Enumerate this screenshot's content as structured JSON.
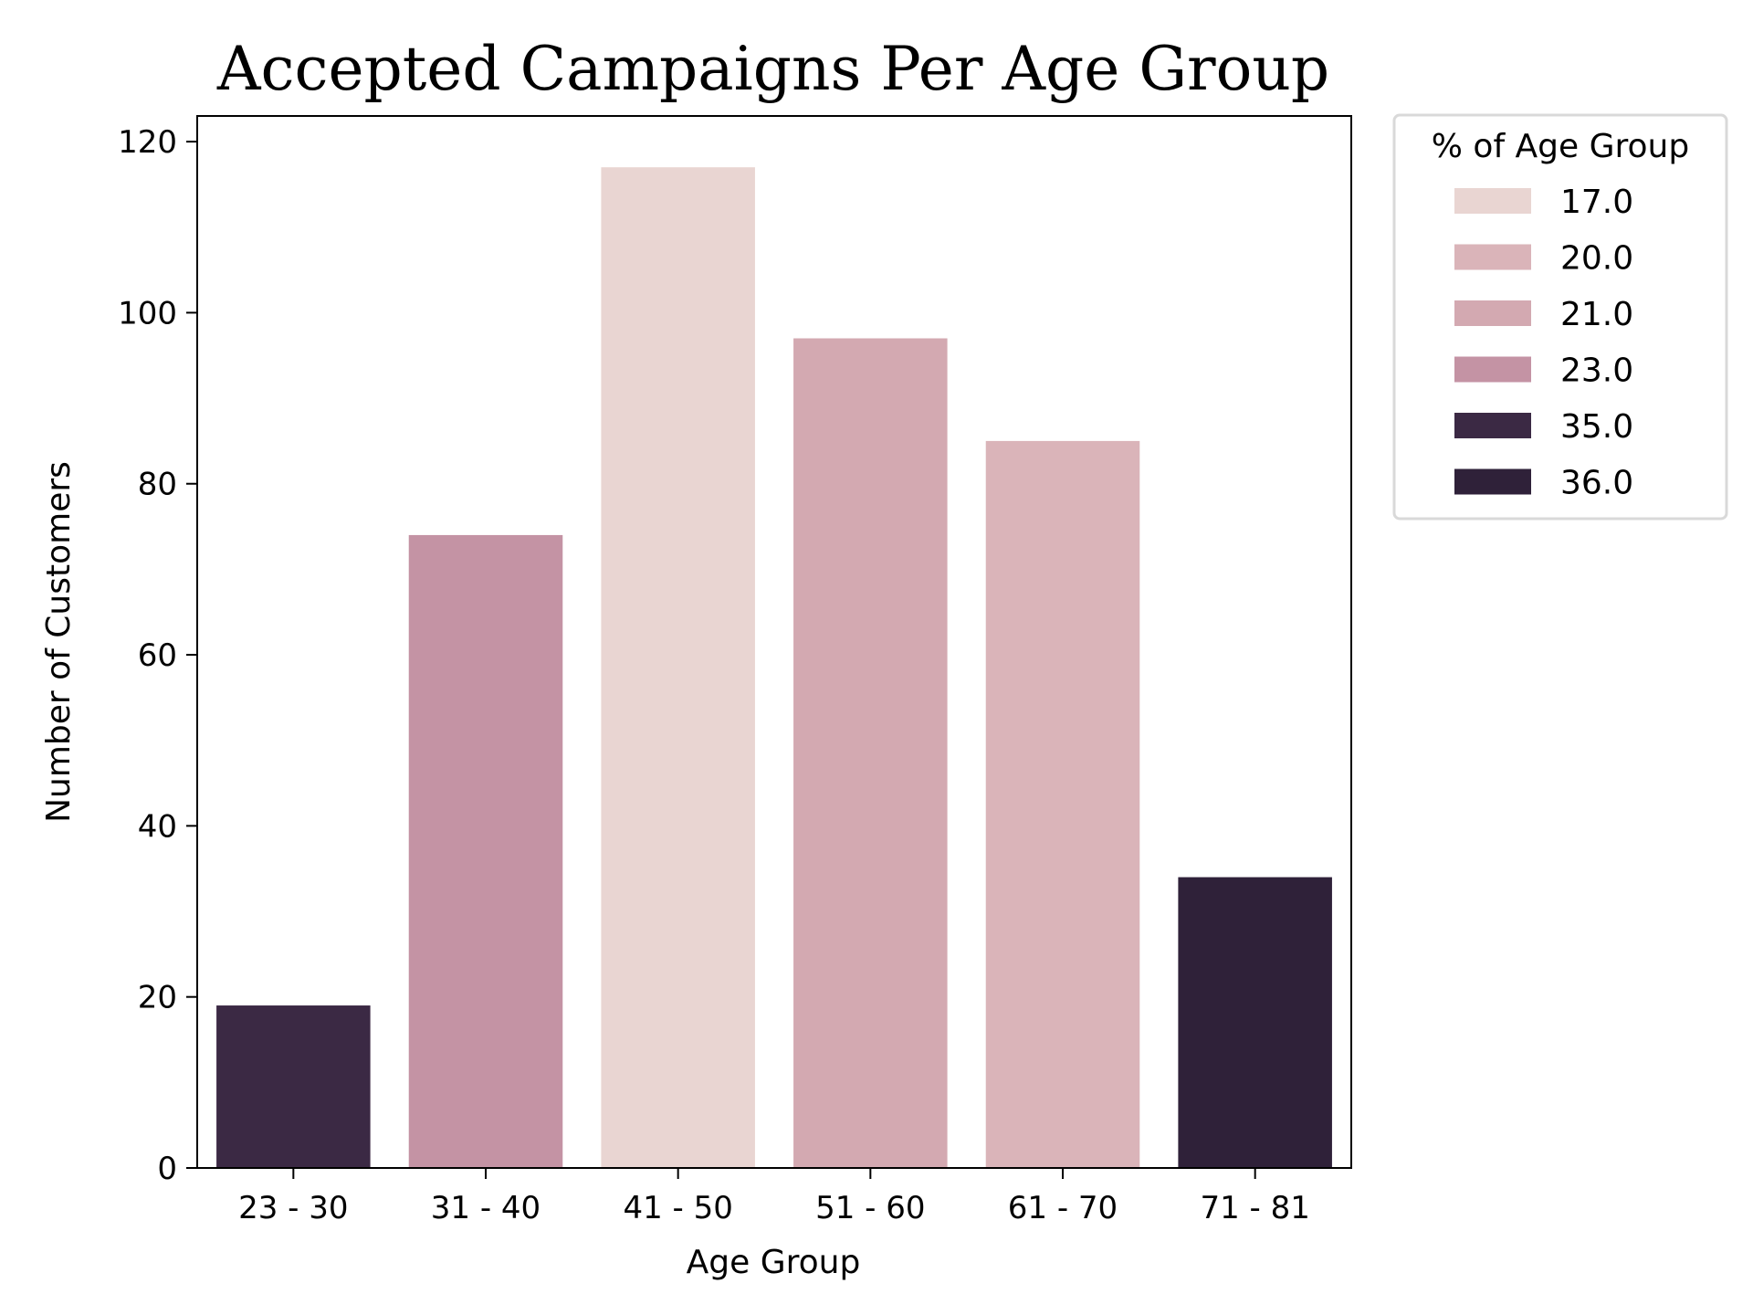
{
  "chart_data": {
    "type": "bar",
    "title": "Accepted Campaigns Per Age Group",
    "xlabel": "Age Group",
    "ylabel": "Number of Customers",
    "categories": [
      "23 - 30",
      "31 - 40",
      "41 - 50",
      "51 - 60",
      "61 - 70",
      "71 - 81"
    ],
    "values": [
      19,
      74,
      117,
      97,
      85,
      34
    ],
    "hue": [
      "35.0",
      "23.0",
      "17.0",
      "21.0",
      "20.0",
      "36.0"
    ],
    "bar_colors": [
      "#3b2944",
      "#c493a4",
      "#e9d5d2",
      "#d3a9b1",
      "#dab4b9",
      "#2f2139"
    ],
    "ylim": [
      0,
      123
    ],
    "yticks": [
      0,
      20,
      40,
      60,
      80,
      100,
      120
    ],
    "grid": false,
    "legend": {
      "title": "% of Age Group",
      "placement": "outside-upper-right",
      "entries": [
        {
          "label": "17.0",
          "color": "#e9d5d2"
        },
        {
          "label": "20.0",
          "color": "#dab4b9"
        },
        {
          "label": "21.0",
          "color": "#d3a9b1"
        },
        {
          "label": "23.0",
          "color": "#c493a4"
        },
        {
          "label": "35.0",
          "color": "#3b2944"
        },
        {
          "label": "36.0",
          "color": "#2f2139"
        }
      ]
    }
  }
}
